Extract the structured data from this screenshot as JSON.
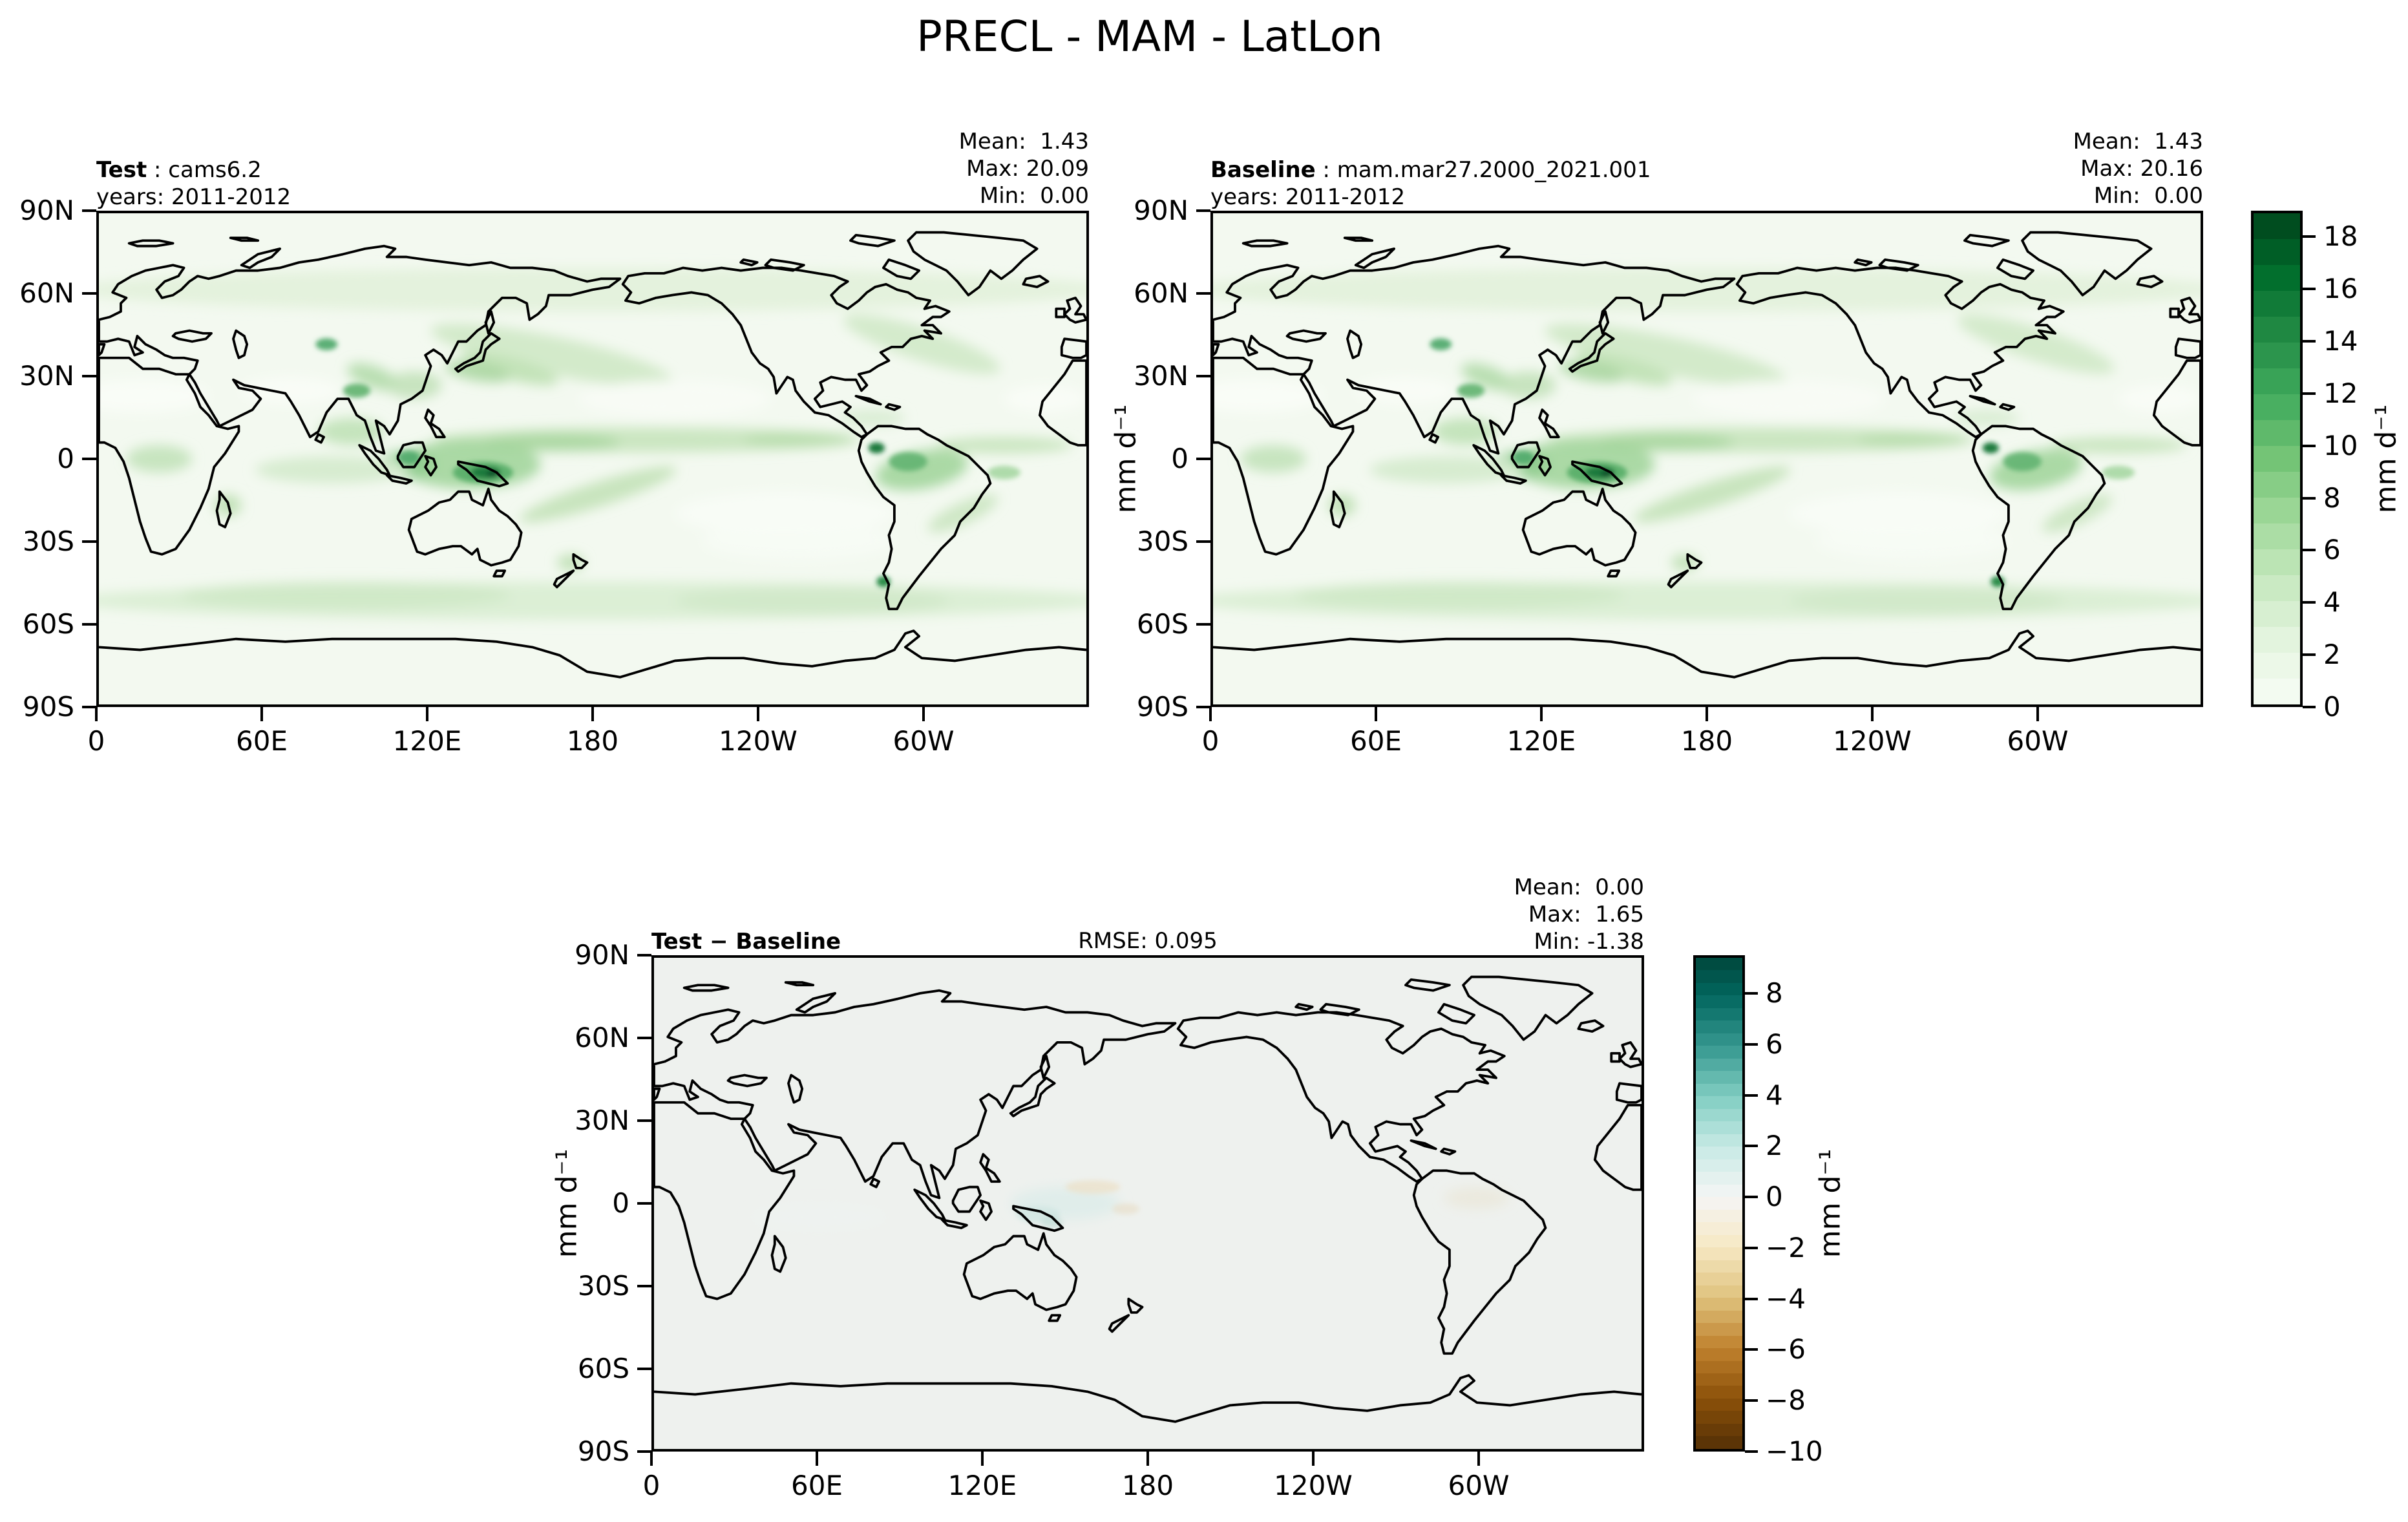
{
  "title": "PRECL - MAM - LatLon",
  "panels": {
    "test": {
      "label": "Test",
      "label_rest": " : cams6.2",
      "years": "years: 2011-2012",
      "mean": "Mean:  1.43",
      "max": "Max: 20.09",
      "min": "Min:  0.00"
    },
    "baseline": {
      "label": "Baseline",
      "label_rest": " : mam.mar27.2000_2021.001",
      "years": "years: 2011-2012",
      "mean": "Mean:  1.43",
      "max": "Max: 20.16",
      "min": "Min:  0.00"
    },
    "diff": {
      "label": "Test − Baseline",
      "rmse": "RMSE: 0.095",
      "mean": "Mean:  0.00",
      "max": "Max:  1.65",
      "min": "Min: -1.38"
    }
  },
  "axes": {
    "x_ticks": [
      "0",
      "60E",
      "120E",
      "180",
      "120W",
      "60W"
    ],
    "y_ticks": [
      "90N",
      "60N",
      "30N",
      "0",
      "30S",
      "60S",
      "90S"
    ],
    "unit_label": "mm d⁻¹"
  },
  "colorbars": {
    "precip": {
      "unit": "mm d⁻¹",
      "ticks": [
        18,
        16,
        14,
        12,
        10,
        8,
        6,
        4,
        2,
        0
      ],
      "vmin": 0,
      "vmax": 19,
      "step": 1,
      "cmap": "Greens",
      "cmap_range": [
        0,
        19
      ]
    },
    "diff": {
      "unit": "mm d⁻¹",
      "ticks": [
        8,
        6,
        4,
        2,
        0,
        -2,
        -4,
        -6,
        -8,
        -10
      ],
      "vmin": -10,
      "vmax": 9.5,
      "step": 0.5,
      "cmap": "BrBG",
      "cmap_range": [
        -10,
        10
      ]
    }
  },
  "colors": {
    "coastline": "#000000",
    "precip_bg": "#f3f9f0",
    "diff_bg": "#eef1ee",
    "greens_low": "#f7fcf5",
    "greens_high": "#00441b",
    "brbg_brown": "#543005",
    "brbg_teal": "#003c30"
  },
  "chart_data": {
    "type": "heatmap",
    "variable": "PRECL",
    "season": "MAM",
    "projection": "LatLon",
    "title": "PRECL - MAM - LatLon",
    "x_axis": {
      "tick_labels": [
        "0",
        "60E",
        "120E",
        "180",
        "120W",
        "60W"
      ],
      "range_deg_lon": [
        0,
        360
      ]
    },
    "y_axis": {
      "tick_labels": [
        "90N",
        "60N",
        "30N",
        "0",
        "30S",
        "60S",
        "90S"
      ],
      "range_deg_lat": [
        -90,
        90
      ]
    },
    "panels": [
      {
        "name": "Test",
        "dataset": "cams6.2",
        "years": "2011-2012",
        "mean": 1.43,
        "max": 20.09,
        "min": 0.0,
        "units": "mm d⁻¹",
        "colormap": "Greens",
        "colorbar_ticks": [
          0,
          2,
          4,
          6,
          8,
          10,
          12,
          14,
          16,
          18
        ],
        "colorbar_range": [
          0,
          19
        ]
      },
      {
        "name": "Baseline",
        "dataset": "mam.mar27.2000_2021.001",
        "years": "2011-2012",
        "mean": 1.43,
        "max": 20.16,
        "min": 0.0,
        "units": "mm d⁻¹",
        "colormap": "Greens",
        "colorbar_ticks": [
          0,
          2,
          4,
          6,
          8,
          10,
          12,
          14,
          16,
          18
        ],
        "colorbar_range": [
          0,
          19
        ]
      },
      {
        "name": "Test − Baseline",
        "rmse": 0.095,
        "mean": 0.0,
        "max": 1.65,
        "min": -1.38,
        "units": "mm d⁻¹",
        "colormap": "BrBG",
        "colorbar_ticks": [
          -10,
          -8,
          -6,
          -4,
          -2,
          0,
          2,
          4,
          6,
          8
        ],
        "colorbar_range": [
          -10,
          9.5
        ]
      }
    ]
  }
}
